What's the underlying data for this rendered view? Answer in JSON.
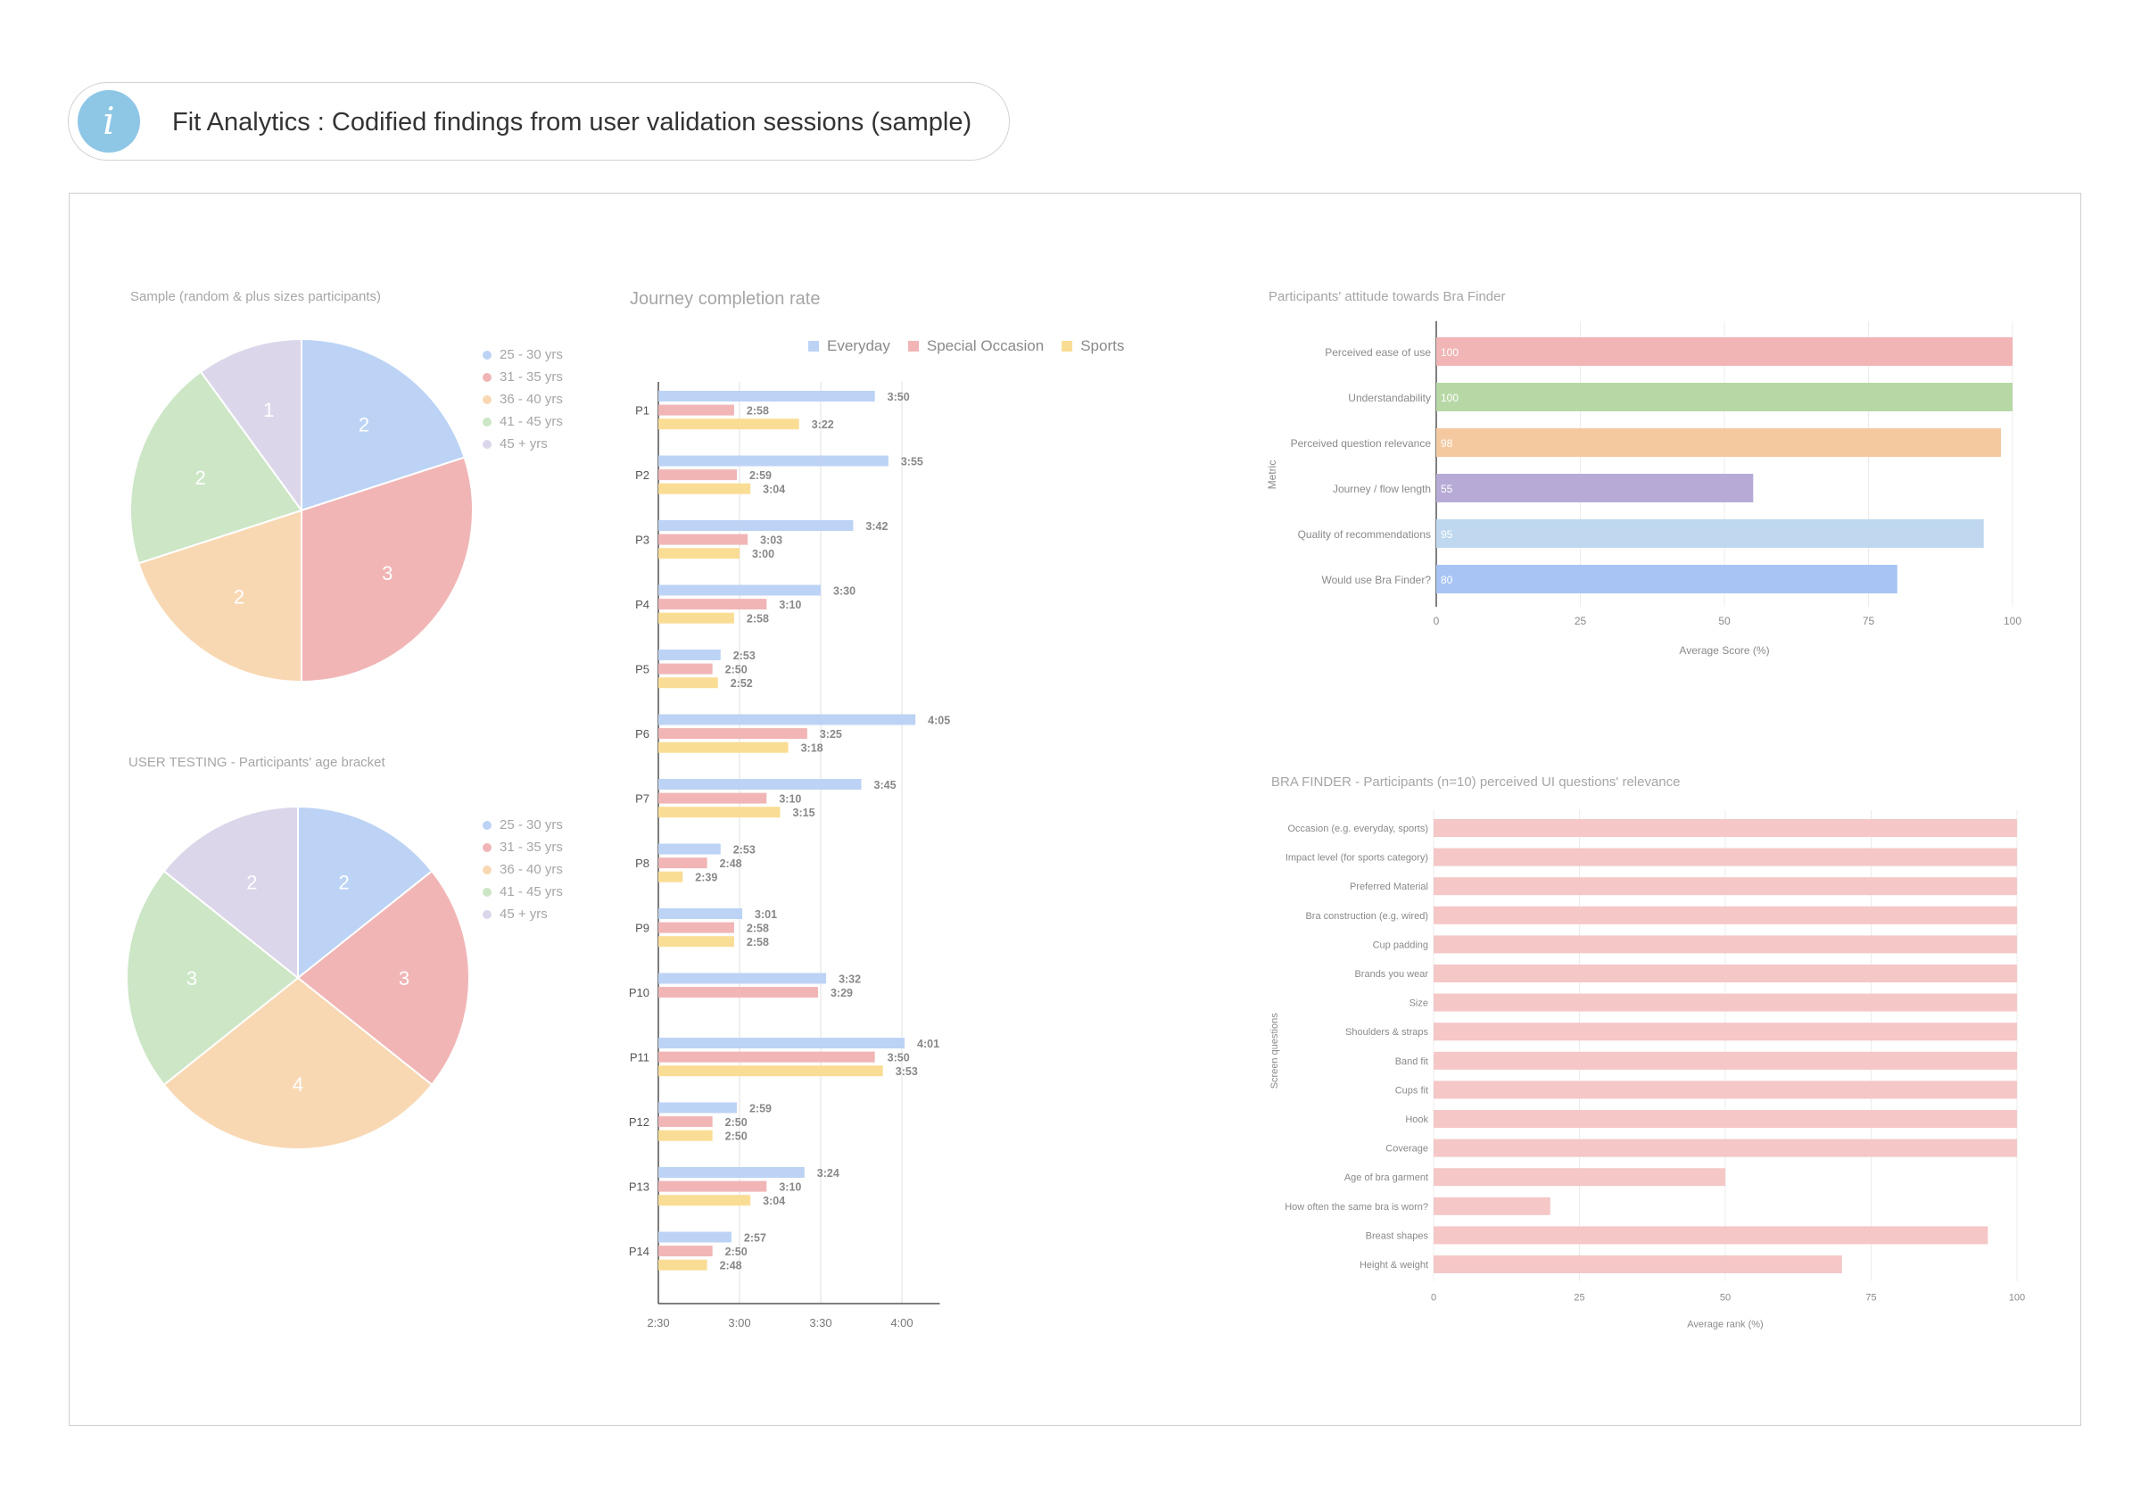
{
  "header": {
    "title": "Fit Analytics : Codified findings from user validation sessions (sample)",
    "icon": "info-icon"
  },
  "colors": {
    "blue": "#bcd3f5",
    "red": "#f1b5b6",
    "orange": "#f8d8b3",
    "green": "#cce6c6",
    "purple": "#dcd6ea",
    "sport": "#fadd95",
    "green_bar": "#b7d8a5",
    "orange_bar": "#f5c9a0",
    "purple_bar": "#b7aad6",
    "lightblue_bar": "#bfd8ef",
    "blue_bar": "#a7c4f4",
    "pink_bar": "#f5c7c7"
  },
  "chart_data": [
    {
      "type": "pie",
      "title": "Sample (random & plus sizes participants)",
      "labels": [
        "25 - 30 yrs",
        "31 - 35 yrs",
        "36 - 40 yrs",
        "41 - 45 yrs",
        "45 + yrs"
      ],
      "values": [
        2,
        3,
        2,
        2,
        1
      ],
      "legend_position": "right"
    },
    {
      "type": "pie",
      "title": "USER TESTING - Participants' age bracket",
      "labels": [
        "25 - 30 yrs",
        "31 - 35 yrs",
        "36 - 40 yrs",
        "41 - 45 yrs",
        "45 + yrs"
      ],
      "values": [
        2,
        3,
        4,
        3,
        2
      ],
      "legend_position": "right"
    },
    {
      "type": "bar",
      "orientation": "horizontal",
      "title": "Journey completion rate",
      "categories": [
        "P1",
        "P2",
        "P3",
        "P4",
        "P5",
        "P6",
        "P7",
        "P8",
        "P9",
        "P10",
        "P11",
        "P12",
        "P13",
        "P14"
      ],
      "series": [
        {
          "name": "Everyday",
          "values": [
            "3:50",
            "3:55",
            "3:42",
            "3:30",
            "2:53",
            "4:05",
            "3:45",
            "2:53",
            "3:01",
            "3:32",
            "4:01",
            "2:59",
            "3:24",
            "2:57"
          ]
        },
        {
          "name": "Special Occasion",
          "values": [
            "2:58",
            "2:59",
            "3:03",
            "3:10",
            "2:50",
            "3:25",
            "3:10",
            "2:48",
            "2:58",
            "3:29",
            "3:50",
            "2:50",
            "3:10",
            "2:50"
          ]
        },
        {
          "name": "Sports",
          "values": [
            "3:22",
            "3:04",
            "3:00",
            "2:58",
            "2:52",
            "3:18",
            "3:15",
            "2:39",
            "2:58",
            null,
            "3:53",
            "2:50",
            "3:04",
            "2:48"
          ]
        }
      ],
      "xticks": [
        "2:30",
        "3:00",
        "3:30",
        "4:00"
      ],
      "xlim": [
        "2:30",
        "4:14"
      ],
      "legend_position": "top",
      "grid": true
    },
    {
      "type": "bar",
      "orientation": "horizontal",
      "title": "Participants' attitude towards Bra Finder",
      "categories": [
        "Perceived ease of use",
        "Understandability",
        "Perceived question relevance",
        "Journey / flow length",
        "Quality of recommendations",
        "Would use Bra Finder?"
      ],
      "values": [
        100,
        100,
        98,
        55,
        95,
        80
      ],
      "value_labels": [
        "100",
        "100",
        "98",
        "55",
        "95",
        "80"
      ],
      "xlabel": "Average Score (%)",
      "ylabel": "Metric",
      "xticks": [
        "0",
        "25",
        "50",
        "75",
        "100"
      ],
      "xlim": [
        0,
        100
      ],
      "grid": true
    },
    {
      "type": "bar",
      "orientation": "horizontal",
      "title": "BRA FINDER - Participants (n=10) perceived UI questions' relevance",
      "categories": [
        "Occasion (e.g. everyday, sports)",
        "Impact level (for sports category)",
        "Preferred Material",
        "Bra construction (e.g. wired)",
        "Cup padding",
        "Brands you wear",
        "Size",
        "Shoulders & straps",
        "Band fit",
        "Cups fit",
        "Hook",
        "Coverage",
        "Age of bra garment",
        "How often the same bra is worn?",
        "Breast shapes",
        "Height & weight"
      ],
      "values": [
        100,
        100,
        100,
        100,
        100,
        100,
        100,
        100,
        100,
        100,
        100,
        100,
        50,
        20,
        95,
        70
      ],
      "xlabel": "Average rank (%)",
      "ylabel": "Screen questions",
      "xticks": [
        "0",
        "25",
        "50",
        "75",
        "100"
      ],
      "xlim": [
        0,
        100
      ],
      "grid": true
    }
  ]
}
